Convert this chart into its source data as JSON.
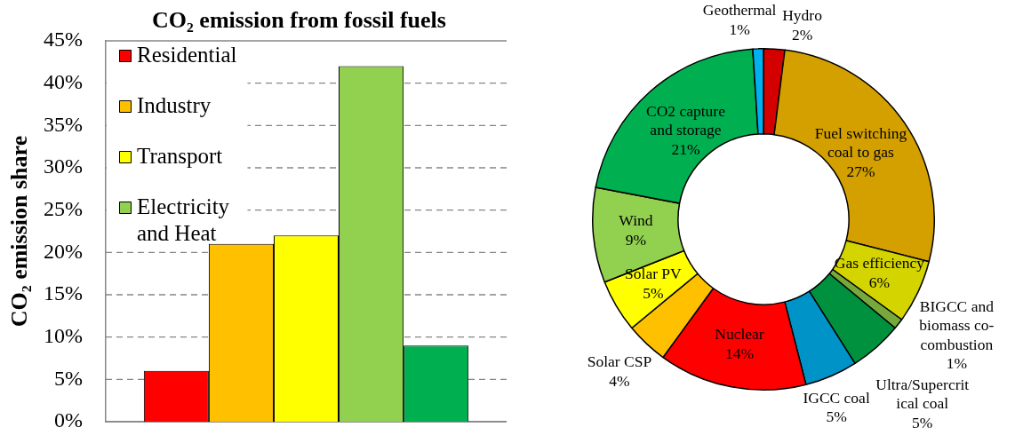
{
  "chart_data": [
    {
      "type": "bar",
      "title": "CO₂ emission from fossil fuels",
      "ylabel": "CO₂ emission share",
      "categories": [
        null
      ],
      "series": [
        {
          "name": "Residential",
          "color": "#ff0000",
          "values": [
            6
          ]
        },
        {
          "name": "Industry",
          "color": "#ffc000",
          "values": [
            21
          ]
        },
        {
          "name": "Transport",
          "color": "#ffff00",
          "values": [
            22
          ]
        },
        {
          "name": "Electricity and Heat",
          "color": "#92d050",
          "values": [
            42
          ]
        },
        {
          "color": "#00b050",
          "values": [
            9
          ]
        }
      ],
      "ylim": [
        0,
        45
      ],
      "yticks": [
        {
          "value": 0,
          "label": "0%"
        },
        {
          "value": 5,
          "label": "5%"
        },
        {
          "value": 10,
          "label": "10%"
        },
        {
          "value": 15,
          "label": "15%"
        },
        {
          "value": 20,
          "label": "20%"
        },
        {
          "value": 25,
          "label": "25%"
        },
        {
          "value": 30,
          "label": "30%"
        },
        {
          "value": 35,
          "label": "35%"
        },
        {
          "value": 40,
          "label": "40%"
        },
        {
          "value": 45,
          "label": "45%"
        }
      ],
      "grid": "y",
      "legend": "top left"
    },
    {
      "type": "donut",
      "categories": [
        "Hydro",
        "Fuel switching coal to gas",
        "Gas efficiency",
        "BIGCC and biomass co-combustion",
        "Ultra/Supercritical coal",
        "IGCC coal",
        "Nuclear",
        "Solar CSP",
        "Solar PV",
        "Wind",
        "CO2 capture and storage",
        "Geothermal"
      ],
      "values": [
        2,
        27,
        6,
        1,
        5,
        5,
        14,
        4,
        5,
        9,
        21,
        1
      ],
      "colors": [
        "#d40000",
        "#d4a000",
        "#d4d400",
        "#76a83c",
        "#00913f",
        "#0093c8",
        "#ff0000",
        "#ffc000",
        "#ffff00",
        "#92d050",
        "#00b050",
        "#00b0f0"
      ],
      "value_labels": [
        "2%",
        "27%",
        "6%",
        "1%",
        "5%",
        "5%",
        "14%",
        "4%",
        "5%",
        "9%",
        "21%",
        "1%"
      ]
    }
  ]
}
